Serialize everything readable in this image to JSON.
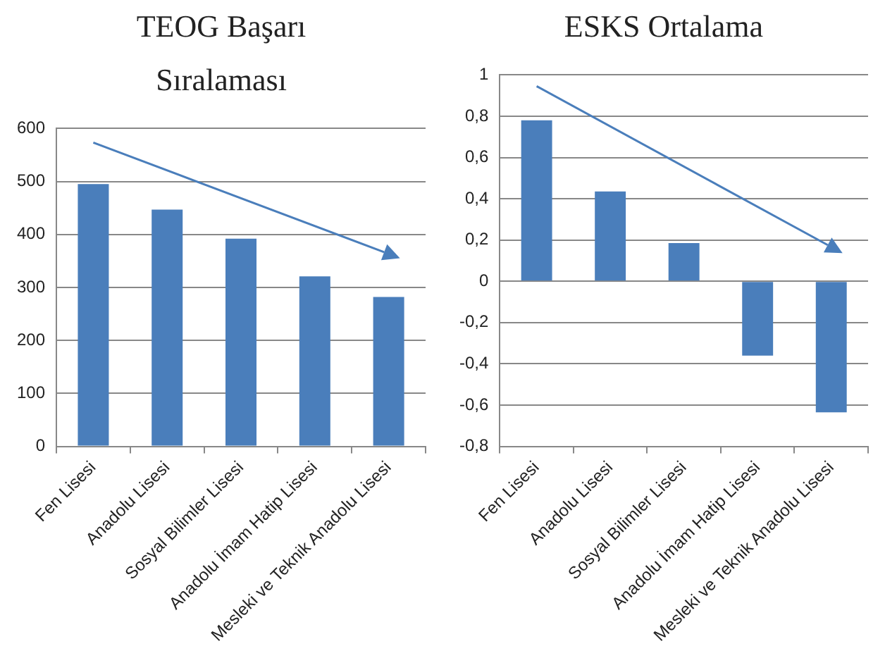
{
  "chart_data": [
    {
      "type": "bar",
      "title": "TEOG Başarı Sıralaması",
      "categories": [
        "Fen Lisesi",
        "Anadolu Lisesi",
        "Sosyal Bilimler Lisesi",
        "Anadolu İmam Hatip Lisesi",
        "Mesleki ve Teknik Anadolu Lisesi"
      ],
      "values": [
        495,
        447,
        392,
        321,
        282
      ],
      "color": "#4a7ebb",
      "ylim": [
        0,
        600
      ],
      "yticks": [
        0,
        100,
        200,
        300,
        400,
        500,
        600
      ],
      "grid": "y",
      "legend": false
    },
    {
      "type": "bar",
      "title": "ESKS Ortalama",
      "categories": [
        "Fen Lisesi",
        "Anadolu Lisesi",
        "Sosyal Bilimler Lisesi",
        "Anadolu İmam Hatip Lisesi",
        "Mesleki ve Teknik Anadolu Lisesi"
      ],
      "values": [
        0.78,
        0.435,
        0.185,
        -0.36,
        -0.635
      ],
      "color": "#4a7ebb",
      "ylim": [
        -0.8,
        1
      ],
      "yticks": [
        {
          "value": -0.8,
          "label": "-0,8"
        },
        {
          "value": -0.6,
          "label": "-0,6"
        },
        {
          "value": -0.4,
          "label": "-0,4"
        },
        {
          "value": -0.2,
          "label": "-0,2"
        },
        0,
        {
          "value": 0.2,
          "label": "0,2"
        },
        {
          "value": 0.4,
          "label": "0,4"
        },
        {
          "value": 0.6,
          "label": "0,6"
        },
        {
          "value": 0.8,
          "label": "0,8"
        },
        1
      ],
      "grid": "y",
      "legend": false
    }
  ]
}
